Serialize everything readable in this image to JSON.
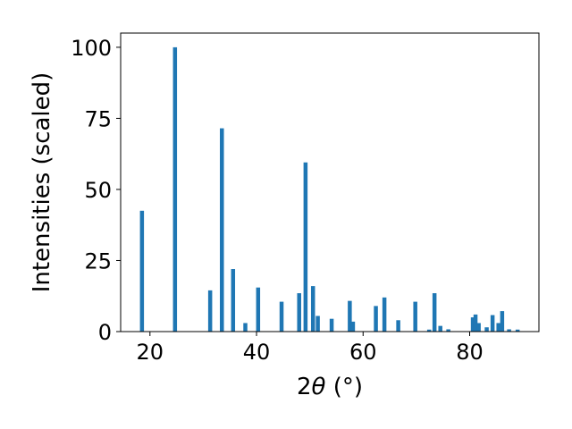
{
  "chart_data": {
    "type": "bar",
    "title": "",
    "xlabel_prefix": "2",
    "xlabel_theta": "θ",
    "xlabel_suffix": " (°)",
    "ylabel": "Intensities (scaled)",
    "xlim": [
      14.5,
      93
    ],
    "ylim": [
      0,
      105
    ],
    "xticks": [
      20,
      40,
      60,
      80
    ],
    "yticks": [
      0,
      25,
      50,
      75,
      100
    ],
    "grid": false,
    "bar_color": "#1f77b4",
    "series": [
      {
        "x": [
          18.5,
          24.7,
          31.3,
          33.5,
          35.6,
          37.9,
          40.3,
          44.7,
          48.0,
          49.2,
          50.6,
          51.5,
          54.1,
          57.5,
          58.1,
          62.4,
          64.0,
          66.6,
          69.8,
          72.4,
          73.4,
          74.5,
          76.0,
          80.6,
          81.1,
          81.7,
          83.2,
          84.3,
          85.4,
          86.1,
          87.4,
          89.0
        ],
        "values": [
          42.5,
          100,
          14.5,
          71.5,
          22,
          3,
          15.5,
          10.5,
          13.5,
          59.5,
          16,
          5.5,
          4.5,
          10.8,
          3.5,
          9,
          12,
          4,
          10.5,
          0.7,
          13.5,
          2,
          0.8,
          5,
          6,
          3,
          1.5,
          5.8,
          3,
          7.2,
          0.8,
          0.7
        ]
      }
    ]
  }
}
